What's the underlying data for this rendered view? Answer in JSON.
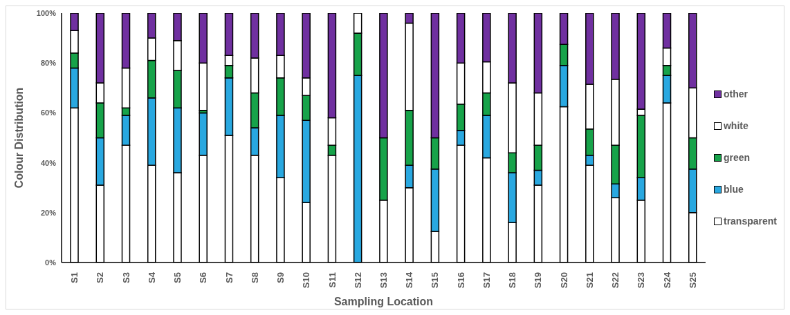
{
  "chart_data": {
    "type": "bar",
    "stacked": true,
    "xlabel": "Sampling Location",
    "ylabel": "Colour Distribution",
    "categories": [
      "S1",
      "S2",
      "S3",
      "S4",
      "S5",
      "S6",
      "S7",
      "S8",
      "S9",
      "S10",
      "S11",
      "S12",
      "S13",
      "S14",
      "S15",
      "S16",
      "S17",
      "S18",
      "S19",
      "S20",
      "S21",
      "S22",
      "S23",
      "S24",
      "S25"
    ],
    "series": [
      {
        "name": "transparent",
        "color": "#ffffff",
        "values": [
          62,
          31,
          47,
          39,
          36,
          43,
          51,
          43,
          34,
          24,
          43,
          0,
          25,
          30,
          12.5,
          47,
          42,
          16,
          31,
          62.5,
          39,
          26,
          25,
          64,
          20
        ]
      },
      {
        "name": "blue",
        "color": "#29a8e0",
        "values": [
          16,
          19,
          12,
          27,
          26,
          17,
          23,
          11,
          25,
          33,
          0,
          75,
          0,
          9,
          25,
          6,
          17,
          20,
          6,
          16.5,
          4,
          5.5,
          9,
          11,
          17.5
        ]
      },
      {
        "name": "green",
        "color": "#17a34a",
        "values": [
          6,
          14,
          3,
          15,
          15,
          1,
          5,
          14,
          15,
          10,
          4,
          17,
          25,
          22,
          12.5,
          10.5,
          9,
          8,
          10,
          8.5,
          10.5,
          15.5,
          25,
          4,
          12.5
        ]
      },
      {
        "name": "white",
        "color": "#ffffff",
        "values": [
          9,
          8,
          16,
          9,
          12,
          19,
          4,
          14,
          9,
          7,
          11,
          8,
          0,
          35,
          0,
          16.5,
          12.5,
          28,
          21,
          0,
          18,
          26.5,
          2.5,
          7,
          20
        ]
      },
      {
        "name": "other",
        "color": "#7030a0",
        "values": [
          7,
          28,
          22,
          10,
          11,
          20,
          17,
          18,
          17,
          26,
          42,
          0,
          50,
          4,
          50,
          20,
          19.5,
          28,
          32,
          12.5,
          28.5,
          26.5,
          38.5,
          14,
          30
        ]
      }
    ],
    "ylim": [
      0,
      100
    ],
    "yticks": [
      {
        "value": 0,
        "label": "0%"
      },
      {
        "value": 20,
        "label": "20%"
      },
      {
        "value": 40,
        "label": "40%"
      },
      {
        "value": 60,
        "label": "60%"
      },
      {
        "value": 80,
        "label": "80%"
      },
      {
        "value": 100,
        "label": "100%"
      }
    ],
    "grid": false,
    "legend": "right"
  }
}
